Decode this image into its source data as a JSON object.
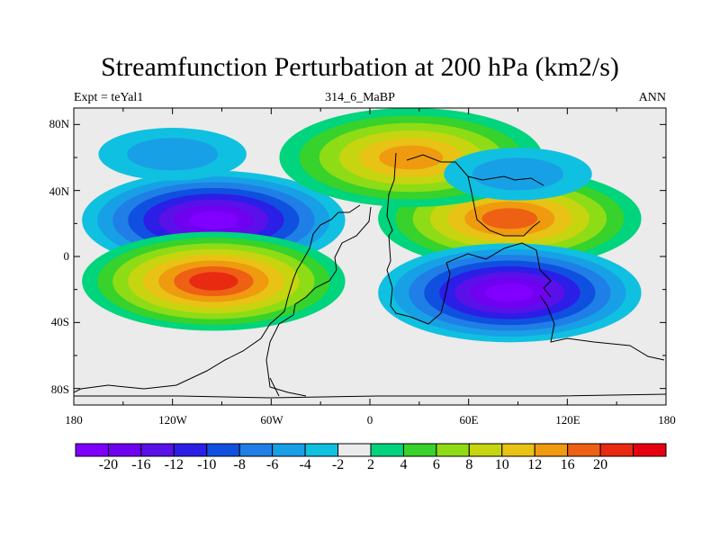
{
  "title": "Streamfunction Perturbation at 200 hPa (km2/s)",
  "left_string": "Expt = teYal1",
  "center_string": "314_6_MaBP",
  "right_string": "ANN",
  "lat_labels": [
    "80N",
    "40N",
    "0",
    "40S",
    "80S"
  ],
  "lon_labels": [
    "180",
    "120W",
    "60W",
    "0",
    "60E",
    "120E",
    "180"
  ],
  "colorbar": {
    "colors": [
      "#7f00ff",
      "#6f00f0",
      "#5a10e8",
      "#2b1ee6",
      "#1050e0",
      "#1f7fe6",
      "#18a0e6",
      "#10c0e0",
      "#ebebeb",
      "#00d47c",
      "#37d22b",
      "#8edc15",
      "#c6d510",
      "#e8c214",
      "#f09a10",
      "#ee6014",
      "#e82a10",
      "#e60010"
    ],
    "labels": [
      "-20",
      "-16",
      "-12",
      "-10",
      "-8",
      "-6",
      "-4",
      "-2",
      "2",
      "4",
      "6",
      "8",
      "10",
      "12",
      "16",
      "20"
    ]
  },
  "chart_data": {
    "type": "contour-map",
    "variable": "Streamfunction Perturbation at 200 hPa",
    "units": "km2/s",
    "experiment": "teYal1",
    "case": "314_6_MaBP",
    "season": "ANN",
    "lon_range": [
      -180,
      180
    ],
    "lat_range": [
      -90,
      90
    ],
    "levels": [
      -20,
      -16,
      -12,
      -10,
      -8,
      -6,
      -4,
      -2,
      2,
      4,
      6,
      8,
      10,
      12,
      16,
      20
    ],
    "features": [
      {
        "lon": -95,
        "lat": 22,
        "value": -21,
        "label": "negative center"
      },
      {
        "lon": -95,
        "lat": -15,
        "value": 21,
        "label": "positive center"
      },
      {
        "lon": 85,
        "lat": 23,
        "value": 19,
        "label": "positive center"
      },
      {
        "lon": 85,
        "lat": -22,
        "value": -21,
        "label": "negative center"
      },
      {
        "lon": 25,
        "lat": 60,
        "value": 12,
        "label": "positive center"
      },
      {
        "lon": -120,
        "lat": 62,
        "value": -5,
        "label": "negative center"
      },
      {
        "lon": 90,
        "lat": 50,
        "value": -4,
        "label": "negative center"
      }
    ]
  }
}
